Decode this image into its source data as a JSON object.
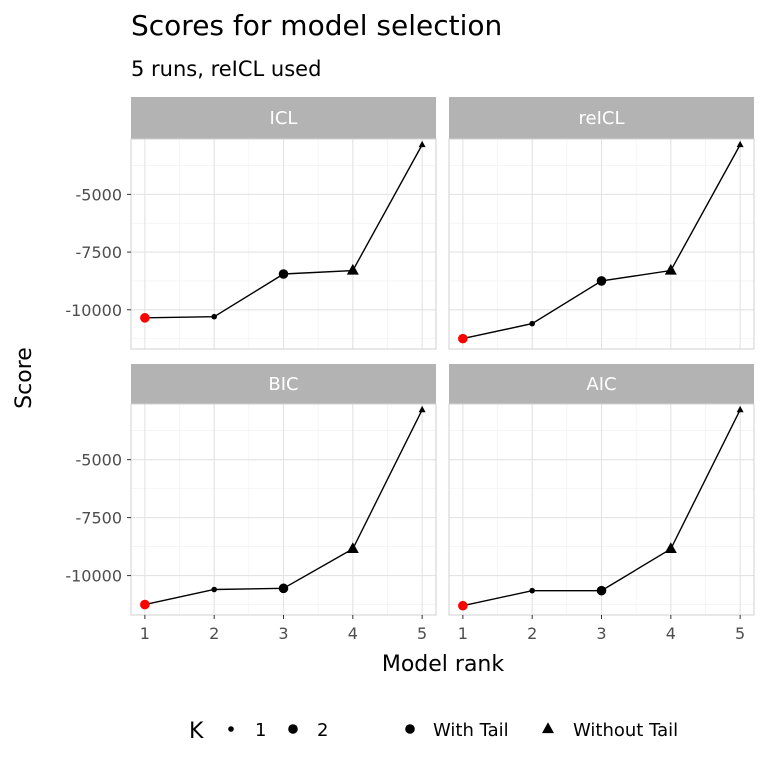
{
  "chart_data": {
    "type": "line",
    "title": "Scores for model selection",
    "subtitle": "5 runs,  reICL used",
    "xlabel": "Model rank",
    "ylabel": "Score",
    "x": [
      1,
      2,
      3,
      4,
      5
    ],
    "xticks": [
      "1",
      "2",
      "3",
      "4",
      "5"
    ],
    "yticks": [
      -10000,
      -7500,
      -5000
    ],
    "ytick_labels": [
      "-10000",
      "-7500",
      "-5000"
    ],
    "ylim": [
      -11700,
      -2600
    ],
    "xlim": [
      0.8,
      5.2
    ],
    "grid": true,
    "highlight_color": "#ff0000",
    "line_color": "#000000",
    "strip_color": "#b3b3b3",
    "panels": [
      {
        "name": "ICL",
        "values": [
          -10350,
          -10300,
          -8450,
          -8300,
          -2850
        ],
        "K": [
          2,
          1,
          2,
          2,
          1
        ],
        "tail": [
          "with",
          "with",
          "with",
          "without",
          "without"
        ]
      },
      {
        "name": "reICL",
        "values": [
          -11250,
          -10600,
          -8750,
          -8300,
          -2850
        ],
        "K": [
          2,
          1,
          2,
          2,
          1
        ],
        "tail": [
          "with",
          "with",
          "with",
          "without",
          "without"
        ]
      },
      {
        "name": "BIC",
        "values": [
          -11250,
          -10600,
          -10550,
          -8850,
          -2850
        ],
        "K": [
          2,
          1,
          2,
          2,
          1
        ],
        "tail": [
          "with",
          "with",
          "with",
          "without",
          "without"
        ]
      },
      {
        "name": "AIC",
        "values": [
          -11300,
          -10650,
          -10650,
          -8850,
          -2850
        ],
        "K": [
          2,
          1,
          2,
          2,
          1
        ],
        "tail": [
          "with",
          "with",
          "with",
          "without",
          "without"
        ]
      }
    ],
    "legend": {
      "position": "bottom",
      "k_title": "K",
      "k_items": [
        "1",
        "2"
      ],
      "tail_items": [
        "With Tail",
        "Without Tail"
      ]
    }
  }
}
